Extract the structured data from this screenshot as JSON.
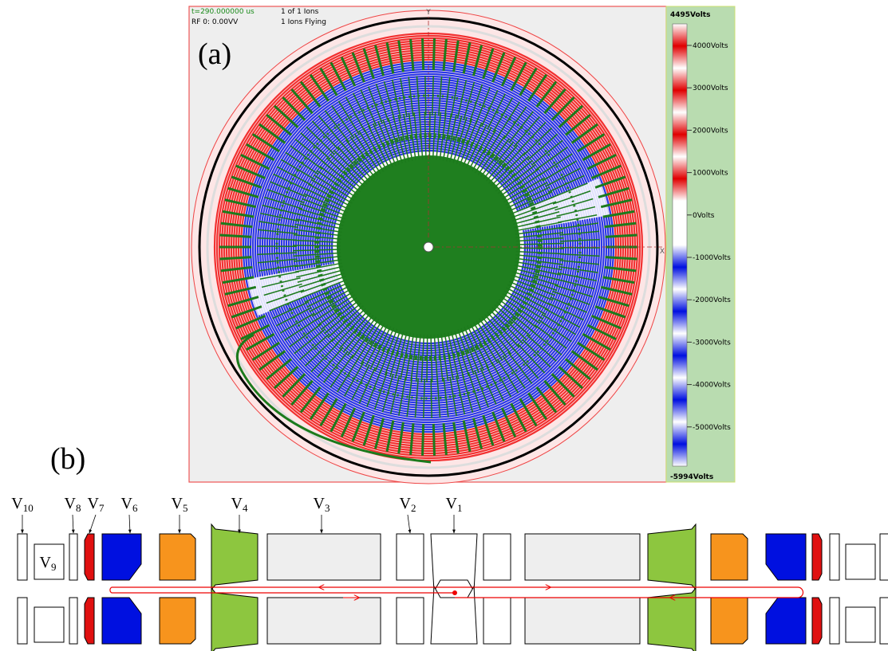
{
  "panel_a": {
    "label": "(a)",
    "status": {
      "time": "t=290.000000 us",
      "rf": "RF  0:    0.00VV",
      "ions": "1 of 1 Ions",
      "flying": "1 Ions Flying"
    },
    "axes": {
      "x": "X",
      "y": "Y"
    },
    "colorbar": {
      "max_label": "4495Volts",
      "min_label": "-5994Volts",
      "tick_labels": [
        "4000Volts",
        "3000Volts",
        "2000Volts",
        "1000Volts",
        "0Volts",
        "-1000Volts",
        "-2000Volts",
        "-3000Volts",
        "-4000Volts",
        "-5000Volts"
      ]
    }
  },
  "panel_b": {
    "label": "(b)",
    "electrodes": [
      {
        "letter": "V",
        "index": "10"
      },
      {
        "letter": "V",
        "index": "8"
      },
      {
        "letter": "V",
        "index": "7"
      },
      {
        "letter": "V",
        "index": "6"
      },
      {
        "letter": "V",
        "index": "5"
      },
      {
        "letter": "V",
        "index": "4"
      },
      {
        "letter": "V",
        "index": "3"
      },
      {
        "letter": "V",
        "index": "2"
      },
      {
        "letter": "V",
        "index": "1"
      }
    ],
    "inner_label": {
      "letter": "V",
      "index": "9"
    }
  }
}
